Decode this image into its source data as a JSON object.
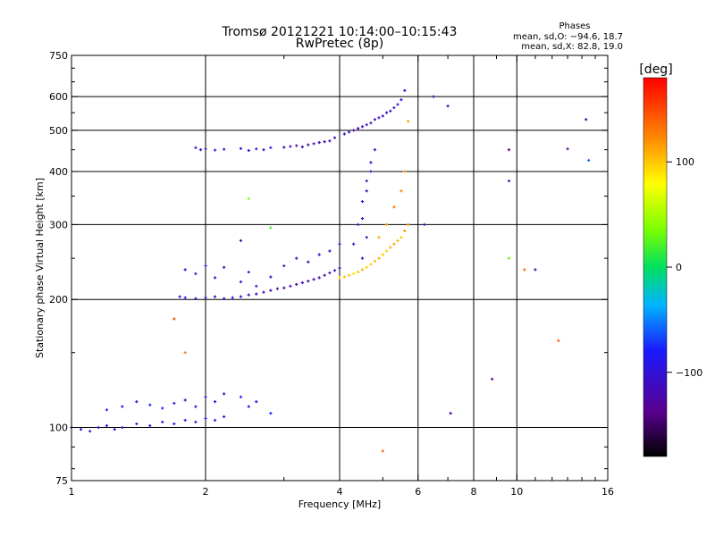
{
  "chart_data": {
    "type": "scatter",
    "title": "Tromsø 20121221 10:14:00–10:15:43",
    "subtitle": "RwPretec (8p)",
    "xlabel": "Frequency [MHz]",
    "ylabel": "Stationary phase Virtual Height [km]",
    "x_scale": "log",
    "y_scale": "log",
    "xlim": [
      1,
      16
    ],
    "ylim": [
      75,
      750
    ],
    "x_ticks": [
      1,
      2,
      4,
      6,
      8,
      10,
      16
    ],
    "y_ticks": [
      75,
      100,
      200,
      300,
      400,
      500,
      600,
      750
    ],
    "x_gridlines": [
      2,
      4,
      6,
      8,
      10
    ],
    "y_gridlines": [
      100,
      200,
      300,
      400,
      500,
      600
    ],
    "grid": true,
    "legend": {
      "heading": "Phases",
      "line1": "mean, sd,O: −94.6, 18.7",
      "line2": "mean, sd,X:  82.8, 19.0"
    },
    "colorbar": {
      "label": "[deg]",
      "ticks": [
        100,
        0,
        -100
      ],
      "tick_labels": [
        "100",
        "0",
        "−100"
      ],
      "range": [
        -180,
        180
      ]
    },
    "series": [
      {
        "x": [
          1.0,
          1.05,
          1.1,
          1.15,
          1.2,
          1.25,
          1.3,
          1.4,
          1.5,
          1.6,
          1.7,
          1.8,
          1.9,
          2.0,
          2.1,
          2.2,
          1.2,
          1.3,
          1.4,
          1.5,
          1.6,
          1.7,
          1.8,
          1.9,
          2.0,
          2.1,
          2.2,
          2.4,
          2.5,
          2.6,
          2.8
        ],
        "y": [
          100,
          99,
          98,
          100,
          101,
          99,
          100,
          102,
          101,
          103,
          102,
          104,
          103,
          105,
          104,
          106,
          110,
          112,
          115,
          113,
          111,
          114,
          116,
          112,
          118,
          115,
          120,
          118,
          112,
          115,
          108
        ],
        "phase": [
          -110,
          -105,
          -100,
          -110,
          -95,
          -100,
          -115,
          -110,
          -105,
          -100,
          -110,
          -100,
          -105,
          -95,
          -100,
          -90,
          -80,
          -85,
          -90,
          -75,
          -80,
          -95,
          -100,
          -85,
          -90,
          -95,
          -100,
          -80,
          -85,
          -90,
          -75
        ]
      },
      {
        "x": [
          1.75,
          1.8,
          1.9,
          2.0,
          2.1,
          2.2,
          2.3,
          2.4,
          2.5,
          2.6,
          2.7,
          2.8,
          2.9,
          3.0,
          3.1,
          3.2,
          3.3,
          3.4,
          3.5,
          3.6,
          3.7,
          3.8,
          3.9,
          4.0,
          1.8,
          1.9,
          2.0,
          2.1,
          2.2,
          2.4,
          2.5,
          2.6,
          2.8,
          3.0,
          3.2,
          3.4,
          3.6,
          3.8,
          4.0
        ],
        "y": [
          203,
          202,
          201,
          202,
          203,
          201,
          202,
          203,
          205,
          206,
          208,
          210,
          212,
          213,
          215,
          217,
          219,
          221,
          223,
          225,
          228,
          231,
          234,
          237,
          235,
          230,
          240,
          225,
          238,
          220,
          232,
          215,
          226,
          240,
          250,
          245,
          255,
          260,
          270
        ],
        "phase": [
          -100,
          -95,
          -105,
          -100,
          -110,
          -95,
          -90,
          -100,
          -105,
          -110,
          -115,
          -120,
          -118,
          -120,
          -115,
          -122,
          -118,
          -120,
          -115,
          -118,
          -116,
          -112,
          -115,
          -110,
          -95,
          -100,
          -90,
          -105,
          -100,
          -95,
          -100,
          -105,
          -110,
          -115,
          -110,
          -118,
          -112,
          -110,
          -108
        ]
      },
      {
        "x": [
          1.9,
          1.95,
          2.0,
          2.1,
          2.2,
          2.4,
          2.5,
          2.6,
          2.7,
          2.8,
          3.0,
          3.1,
          3.2,
          3.3,
          3.4,
          3.5,
          3.6,
          3.7,
          3.8,
          3.9
        ],
        "y": [
          455,
          450,
          452,
          449,
          451,
          453,
          448,
          452,
          450,
          455,
          456,
          458,
          460,
          457,
          462,
          465,
          468,
          470,
          472,
          480
        ],
        "phase": [
          -100,
          -105,
          -110,
          -100,
          -95,
          -100,
          -105,
          -110,
          -100,
          -95,
          -115,
          -110,
          -120,
          -118,
          -115,
          -112,
          -118,
          -120,
          -115,
          -110
        ]
      },
      {
        "x": [
          4.1,
          4.2,
          4.3,
          4.4,
          4.5,
          4.6,
          4.7,
          4.8,
          4.9,
          5.0,
          5.1,
          5.2,
          5.3,
          5.4,
          5.5,
          5.6,
          4.3,
          4.4,
          4.5,
          4.6,
          4.7,
          4.8,
          4.5,
          4.6,
          4.7,
          4.5,
          4.6
        ],
        "y": [
          490,
          495,
          500,
          505,
          510,
          515,
          520,
          530,
          535,
          540,
          550,
          555,
          565,
          575,
          590,
          620,
          270,
          300,
          340,
          380,
          420,
          450,
          310,
          360,
          400,
          250,
          280
        ],
        "phase": [
          -115,
          -110,
          -120,
          -118,
          -112,
          -115,
          -110,
          -105,
          -110,
          -115,
          -112,
          -108,
          -110,
          -105,
          -100,
          -95,
          -118,
          -115,
          -120,
          -118,
          -112,
          -110,
          -115,
          -118,
          -112,
          -120,
          -115
        ]
      },
      {
        "x": [
          4.0,
          4.1,
          4.2,
          4.3,
          4.4,
          4.5,
          4.6,
          4.7,
          4.8,
          4.9,
          5.0,
          5.1,
          5.2,
          5.3,
          5.4,
          5.5,
          5.6,
          5.7,
          4.9,
          5.1,
          5.3,
          5.5,
          5.6,
          5.7
        ],
        "y": [
          225,
          226,
          228,
          230,
          232,
          235,
          238,
          242,
          246,
          250,
          255,
          260,
          265,
          270,
          275,
          280,
          290,
          300,
          280,
          300,
          330,
          360,
          400,
          525
        ],
        "phase": [
          95,
          100,
          105,
          90,
          100,
          110,
          95,
          100,
          105,
          110,
          100,
          95,
          110,
          115,
          105,
          100,
          120,
          125,
          110,
          120,
          130,
          125,
          120,
          115
        ]
      },
      {
        "x": [
          7.0,
          6.5,
          9.6,
          9.6,
          8.8,
          7.1,
          11.0,
          13.0,
          14.3,
          14.5,
          6.2,
          5.0,
          12.4,
          10.4,
          9.6,
          2.5,
          2.8,
          2.4,
          1.7,
          1.8
        ],
        "y": [
          570,
          600,
          450,
          380,
          130,
          108,
          235,
          452,
          530,
          425,
          300,
          88,
          160,
          235,
          250,
          345,
          295,
          275,
          180,
          150
        ],
        "phase": [
          -130,
          -125,
          -135,
          -120,
          -130,
          -125,
          -115,
          -130,
          -125,
          -60,
          -110,
          140,
          140,
          135,
          30,
          40,
          20,
          -120,
          150,
          130
        ]
      }
    ]
  }
}
